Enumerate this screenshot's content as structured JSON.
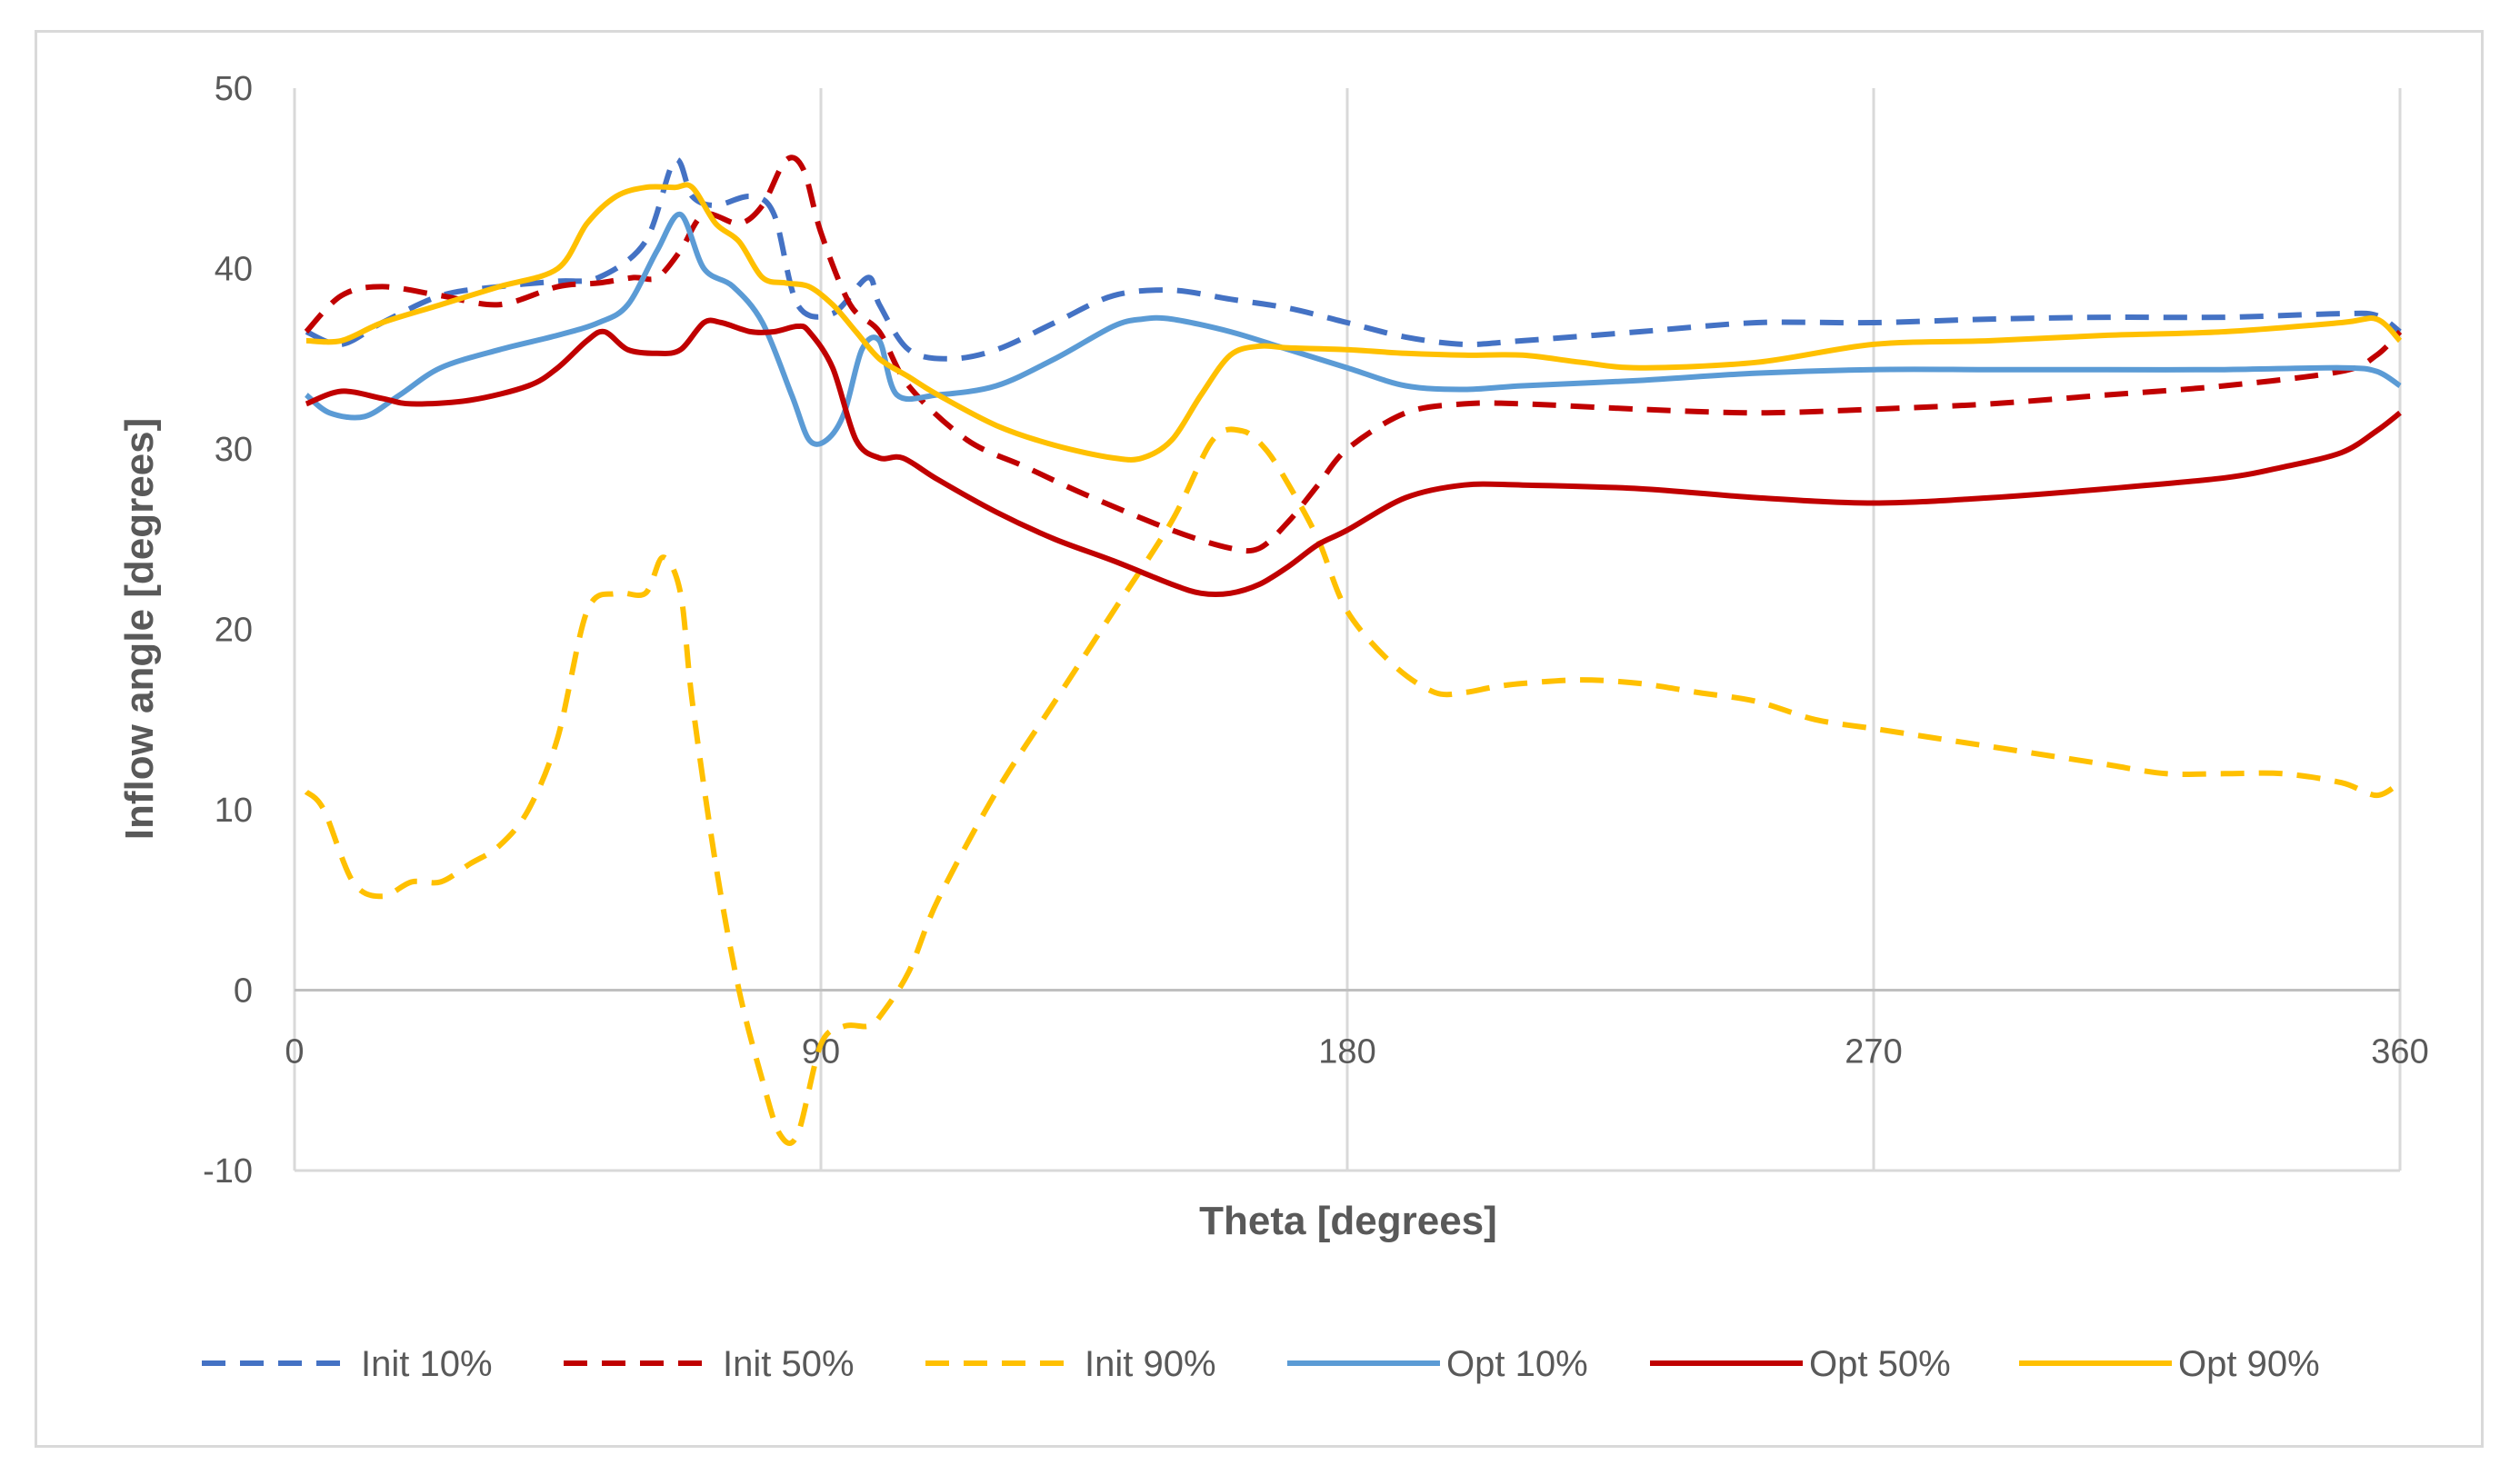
{
  "chart_data": {
    "type": "line",
    "title": "",
    "xlabel": "Theta [degrees]",
    "ylabel": "Inflow angle [degrees]",
    "xlim": [
      0,
      360
    ],
    "ylim": [
      -10,
      50
    ],
    "xticks": [
      0,
      90,
      180,
      270,
      360
    ],
    "yticks": [
      -10,
      0,
      10,
      20,
      30,
      40,
      50
    ],
    "grid": "vertical",
    "legend_position": "bottom",
    "series": [
      {
        "name": "Init 10%",
        "color": "#4472C4",
        "style": "dashed",
        "x": [
          2,
          8,
          15,
          25,
          35,
          45,
          52,
          60,
          65,
          68,
          72,
          78,
          82,
          86,
          92,
          98,
          100,
          105,
          112,
          120,
          130,
          140,
          150,
          160,
          170,
          180,
          190,
          200,
          210,
          230,
          250,
          270,
          290,
          310,
          330,
          350,
          356,
          360
        ],
        "y": [
          36.5,
          35.8,
          37,
          38.5,
          39,
          39.3,
          39.5,
          41.5,
          46,
          44,
          43.5,
          44,
          43,
          38,
          37.5,
          39.5,
          38,
          35.5,
          35,
          35.5,
          37,
          38.5,
          38.8,
          38.3,
          37.8,
          37,
          36.2,
          35.8,
          36,
          36.5,
          37,
          37,
          37.2,
          37.3,
          37.3,
          37.5,
          37.4,
          36.5
        ]
      },
      {
        "name": "Init 50%",
        "color": "#C00000",
        "style": "dashed",
        "x": [
          2,
          8,
          15,
          25,
          35,
          45,
          52,
          58,
          62,
          66,
          70,
          76,
          80,
          84,
          87,
          90,
          95,
          100,
          105,
          115,
          125,
          135,
          150,
          160,
          165,
          170,
          175,
          180,
          190,
          200,
          210,
          230,
          250,
          270,
          290,
          310,
          330,
          350,
          356,
          360
        ],
        "y": [
          36.5,
          38.5,
          39,
          38.5,
          38,
          39,
          39.2,
          39.5,
          39.5,
          41,
          43,
          42.5,
          43.5,
          46,
          45.5,
          42,
          38,
          36.5,
          33.5,
          30.5,
          29,
          27.5,
          25.5,
          24.5,
          24.5,
          26,
          28,
          30,
          32,
          32.5,
          32.5,
          32.2,
          32,
          32.2,
          32.5,
          33,
          33.5,
          34.3,
          35.2,
          36.5
        ]
      },
      {
        "name": "Init 90%",
        "color": "#FFC000",
        "style": "dashed",
        "x": [
          2,
          5,
          10,
          15,
          20,
          25,
          30,
          35,
          40,
          45,
          50,
          55,
          60,
          63,
          66,
          68,
          72,
          76,
          80,
          83,
          86,
          90,
          94,
          98,
          100,
          105,
          110,
          120,
          130,
          140,
          150,
          157,
          162,
          166,
          170,
          175,
          180,
          188,
          195,
          200,
          205,
          210,
          220,
          230,
          240,
          250,
          260,
          270,
          280,
          290,
          300,
          310,
          320,
          330,
          340,
          350,
          356,
          360
        ],
        "y": [
          11,
          10,
          6,
          5.2,
          6,
          6,
          7,
          8,
          10,
          14,
          21,
          22,
          22,
          24,
          22,
          16,
          7,
          0,
          -5,
          -8,
          -8,
          -3,
          -2,
          -2,
          -1.5,
          1,
          5,
          11,
          16,
          21,
          26,
          30.5,
          31,
          30,
          28,
          25,
          21,
          18,
          16.5,
          16.5,
          16.8,
          17,
          17.2,
          17,
          16.5,
          16,
          15,
          14.5,
          14,
          13.5,
          13,
          12.5,
          12,
          12,
          12,
          11.5,
          10.8,
          11.5
        ]
      },
      {
        "name": "Opt 10%",
        "color": "#5B9BD5",
        "style": "solid",
        "x": [
          2,
          6,
          12,
          18,
          25,
          35,
          45,
          52,
          57,
          62,
          66,
          70,
          75,
          80,
          85,
          88,
          91,
          94,
          97,
          100,
          103,
          110,
          120,
          130,
          140,
          145,
          150,
          160,
          170,
          180,
          190,
          200,
          210,
          230,
          250,
          270,
          290,
          310,
          330,
          350,
          356,
          360
        ],
        "y": [
          33,
          32,
          31.8,
          33,
          34.5,
          35.5,
          36.3,
          37,
          38,
          41,
          43,
          40,
          39,
          37,
          33,
          30.5,
          30.5,
          32,
          35.5,
          36,
          33,
          33,
          33.5,
          35,
          36.8,
          37.2,
          37.2,
          36.5,
          35.5,
          34.5,
          33.5,
          33.3,
          33.5,
          33.8,
          34.2,
          34.4,
          34.4,
          34.4,
          34.4,
          34.5,
          34.3,
          33.5
        ]
      },
      {
        "name": "Opt 50%",
        "color": "#C00000",
        "style": "solid",
        "x": [
          2,
          8,
          15,
          20,
          30,
          40,
          45,
          50,
          53,
          57,
          62,
          66,
          70,
          73,
          78,
          82,
          86,
          88,
          92,
          96,
          100,
          104,
          110,
          120,
          130,
          140,
          150,
          155,
          160,
          165,
          170,
          175,
          180,
          190,
          200,
          210,
          230,
          250,
          270,
          290,
          310,
          330,
          340,
          350,
          356,
          360
        ],
        "y": [
          32.5,
          33.2,
          32.8,
          32.5,
          32.7,
          33.5,
          34.5,
          36,
          36.5,
          35.5,
          35.3,
          35.5,
          37,
          37,
          36.5,
          36.5,
          36.8,
          36.5,
          34.5,
          30.5,
          29.5,
          29.5,
          28.3,
          26.5,
          25,
          23.8,
          22.5,
          22,
          22,
          22.5,
          23.5,
          24.7,
          25.5,
          27.3,
          28,
          28,
          27.8,
          27.3,
          27,
          27.3,
          27.8,
          28.4,
          29,
          29.8,
          31,
          32
        ]
      },
      {
        "name": "Opt 90%",
        "color": "#FFC000",
        "style": "solid",
        "x": [
          2,
          8,
          15,
          25,
          35,
          45,
          50,
          55,
          60,
          65,
          68,
          72,
          76,
          80,
          84,
          88,
          92,
          96,
          100,
          105,
          110,
          120,
          130,
          140,
          145,
          150,
          155,
          160,
          165,
          170,
          180,
          190,
          200,
          210,
          220,
          230,
          250,
          270,
          290,
          310,
          330,
          350,
          356,
          360
        ],
        "y": [
          36,
          36,
          37,
          38,
          39,
          40,
          42.5,
          44,
          44.5,
          44.5,
          44.5,
          42.5,
          41.5,
          39.5,
          39.2,
          39,
          38,
          36.5,
          35,
          34,
          33,
          31.3,
          30.2,
          29.5,
          29.5,
          30.5,
          33,
          35.2,
          35.7,
          35.6,
          35.5,
          35.3,
          35.2,
          35.2,
          34.8,
          34.5,
          34.8,
          35.8,
          36,
          36.3,
          36.5,
          37,
          37.2,
          36
        ]
      }
    ]
  }
}
